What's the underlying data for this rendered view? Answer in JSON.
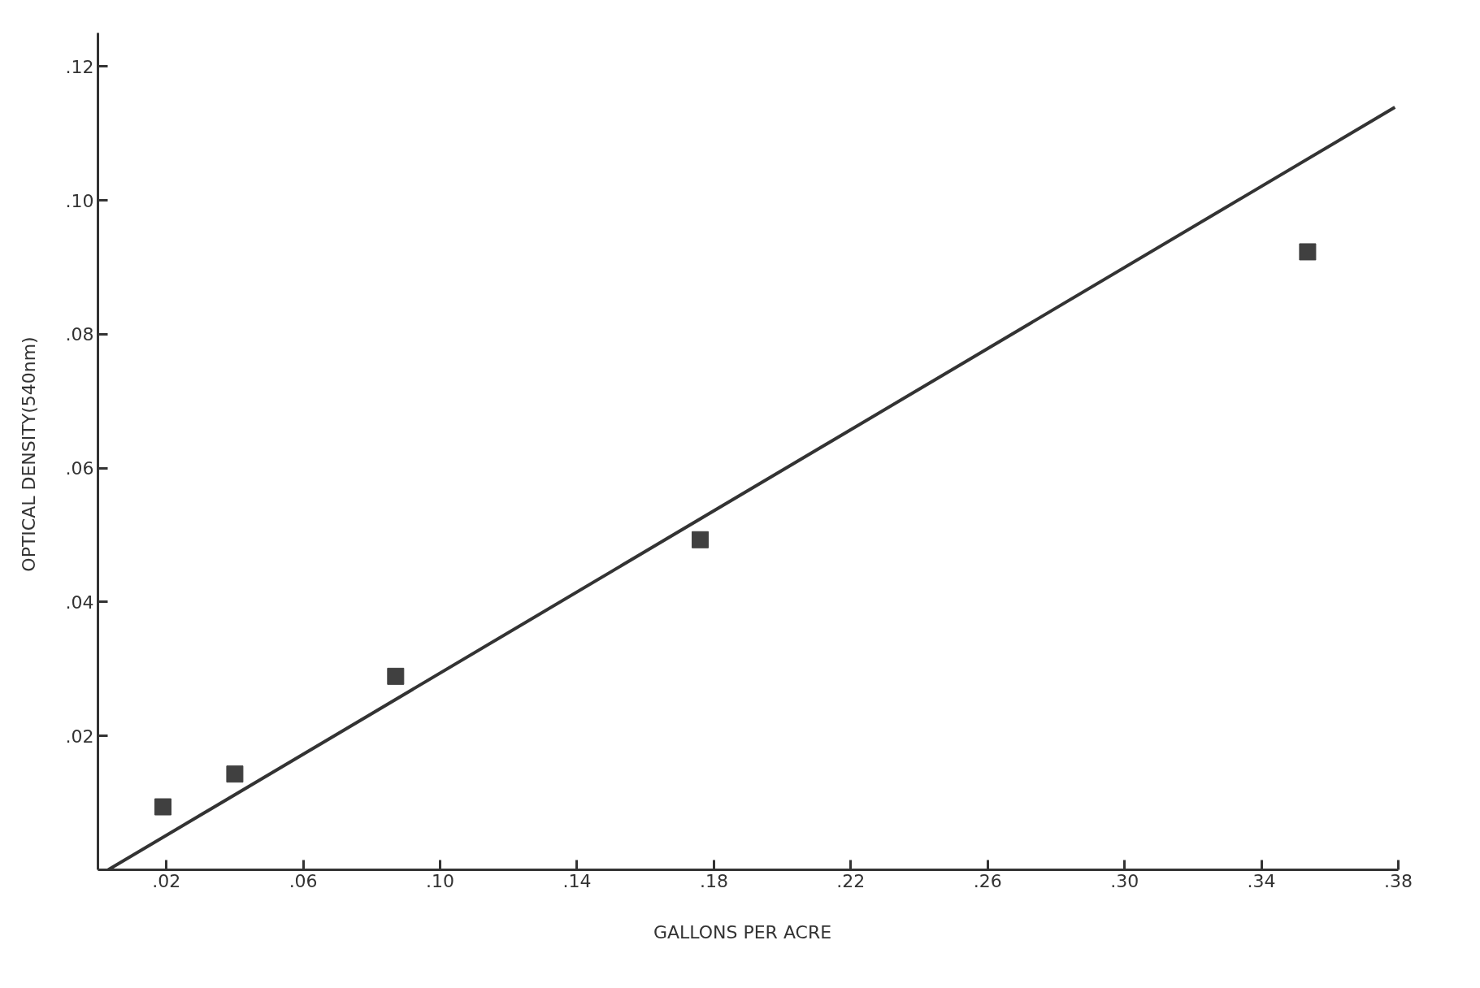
{
  "chart_data": {
    "type": "scatter",
    "xlabel": "GALLONS  PER  ACRE",
    "ylabel": "OPTICAL  DENSITY(540nm)",
    "xlim": [
      0,
      0.38
    ],
    "ylim": [
      0,
      0.125
    ],
    "xticks": [
      {
        "value": 0.02,
        "label": ".02"
      },
      {
        "value": 0.06,
        "label": ".06"
      },
      {
        "value": 0.1,
        "label": ".10"
      },
      {
        "value": 0.14,
        "label": ".14"
      },
      {
        "value": 0.18,
        "label": ".18"
      },
      {
        "value": 0.22,
        "label": ".22"
      },
      {
        "value": 0.26,
        "label": ".26"
      },
      {
        "value": 0.3,
        "label": ".30"
      },
      {
        "value": 0.34,
        "label": ".34"
      },
      {
        "value": 0.38,
        "label": ".38"
      }
    ],
    "yticks": [
      {
        "value": 0.02,
        "label": ".02"
      },
      {
        "value": 0.04,
        "label": ".04"
      },
      {
        "value": 0.06,
        "label": ".06"
      },
      {
        "value": 0.08,
        "label": ".08"
      },
      {
        "value": 0.1,
        "label": ".10"
      },
      {
        "value": 0.12,
        "label": ".12"
      }
    ],
    "grid": false,
    "series": [
      {
        "marker": "square",
        "color": "#404040",
        "x": [
          0.019,
          0.04,
          0.087,
          0.176,
          0.3535
        ],
        "values": [
          0.0094,
          0.0143,
          0.0289,
          0.0493,
          0.0923
        ]
      },
      {
        "type": "line",
        "marker": "none",
        "line_style": "solid",
        "color": "#333333",
        "x": [
          0.003,
          0.379
        ],
        "values": [
          0.0,
          0.1139
        ]
      }
    ]
  }
}
